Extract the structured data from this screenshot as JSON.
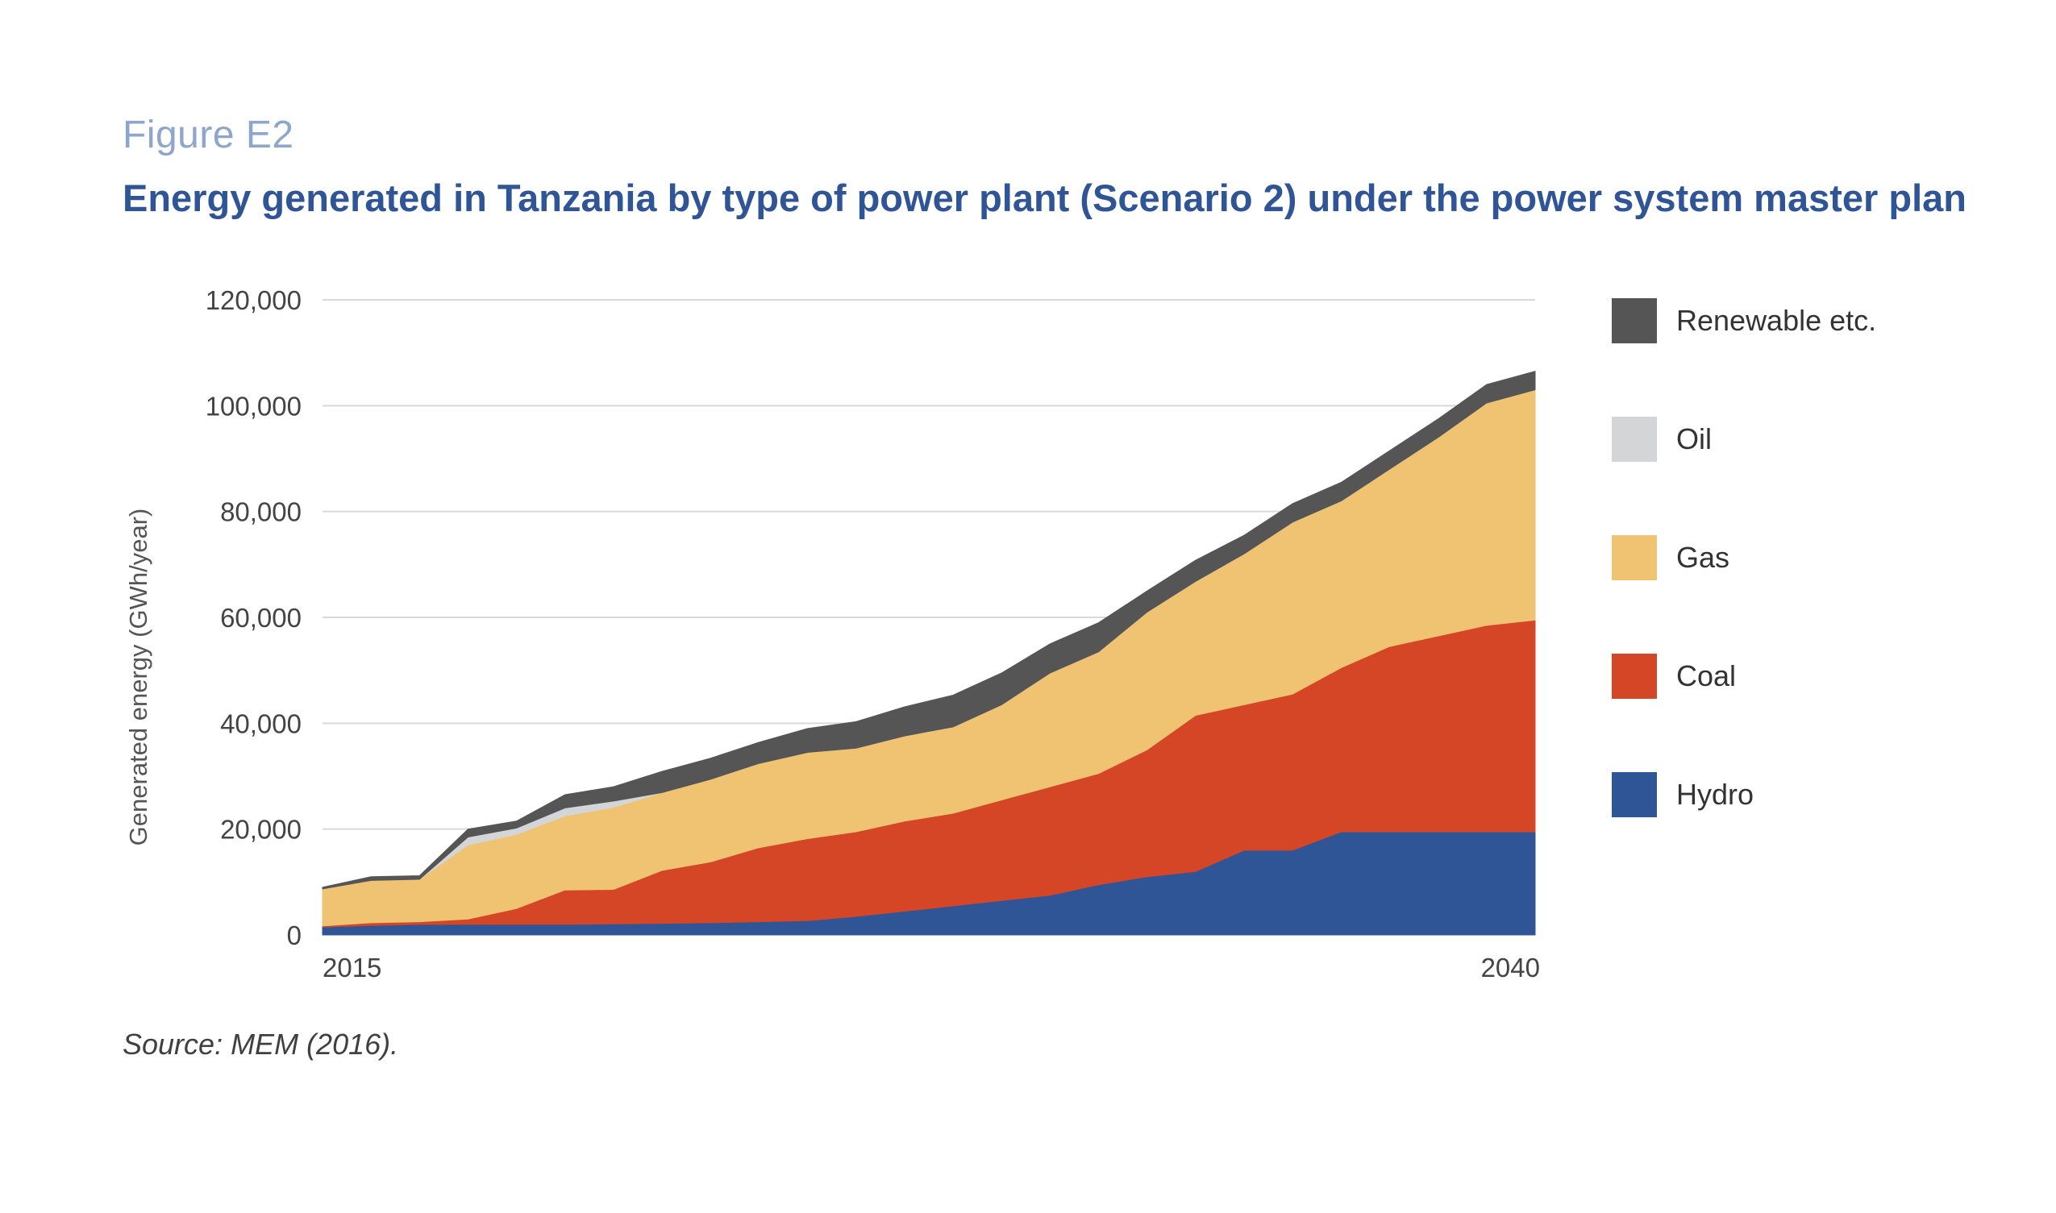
{
  "figure_label": "Figure E2",
  "title": "Energy generated in Tanzania by type of power plant (Scenario 2) under the power system master plan",
  "source": "Source: MEM (2016).",
  "chart_data": {
    "type": "area",
    "stacked": true,
    "x": [
      2015,
      2016,
      2017,
      2018,
      2019,
      2020,
      2021,
      2022,
      2023,
      2024,
      2025,
      2026,
      2027,
      2028,
      2029,
      2030,
      2031,
      2032,
      2033,
      2034,
      2035,
      2036,
      2037,
      2038,
      2039,
      2040
    ],
    "x_tick_labels": [
      {
        "x": 2015,
        "label": "2015"
      },
      {
        "x": 2040,
        "label": "2040"
      }
    ],
    "ylabel": "Generated energy (GWh/year)",
    "ylim": [
      0,
      120000
    ],
    "y_ticks": [
      0,
      20000,
      40000,
      60000,
      80000,
      100000,
      120000
    ],
    "y_tick_labels": [
      "0",
      "20,000",
      "40,000",
      "60,000",
      "80,000",
      "100,000",
      "120,000"
    ],
    "grid": true,
    "legend_position": "right",
    "series": [
      {
        "name": "Hydro",
        "color": "#2f5597",
        "values": [
          1500,
          1800,
          2000,
          2000,
          2000,
          2000,
          2100,
          2200,
          2300,
          2500,
          2700,
          3500,
          4500,
          5500,
          6500,
          7500,
          9500,
          11000,
          12000,
          16000,
          16000,
          19500,
          19500,
          19500,
          19500,
          19500
        ]
      },
      {
        "name": "Coal",
        "color": "#d54627",
        "values": [
          200,
          500,
          500,
          1000,
          3000,
          6500,
          6500,
          10000,
          11500,
          14000,
          15500,
          16000,
          17000,
          17500,
          19000,
          20500,
          21000,
          24000,
          29500,
          27500,
          29500,
          31000,
          35000,
          37000,
          39000,
          40000
        ]
      },
      {
        "name": "Gas",
        "color": "#f0c373",
        "values": [
          7000,
          8000,
          8000,
          14000,
          14000,
          14000,
          15500,
          14700,
          15600,
          15900,
          16300,
          15800,
          16100,
          16300,
          18000,
          21500,
          23000,
          26000,
          25300,
          28500,
          32500,
          31500,
          33500,
          37500,
          42000,
          43500
        ]
      },
      {
        "name": "Oil",
        "color": "#d4d5d7",
        "values": [
          0,
          0,
          0,
          1500,
          1200,
          1500,
          1200,
          0,
          0,
          0,
          0,
          0,
          0,
          0,
          0,
          0,
          0,
          0,
          0,
          0,
          0,
          0,
          0,
          0,
          0,
          0
        ]
      },
      {
        "name": "Renewable etc.",
        "color": "#555555",
        "values": [
          300,
          700,
          700,
          1500,
          1300,
          2500,
          2700,
          4000,
          4000,
          4000,
          4500,
          5000,
          5500,
          6000,
          6000,
          5500,
          5500,
          4000,
          4000,
          3500,
          3500,
          3500,
          3500,
          3500,
          3500,
          3500
        ]
      }
    ]
  }
}
